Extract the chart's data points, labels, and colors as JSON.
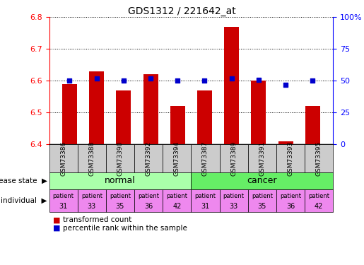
{
  "title": "GDS1312 / 221642_at",
  "samples": [
    "GSM73386",
    "GSM73388",
    "GSM73390",
    "GSM73392",
    "GSM73394",
    "GSM73387",
    "GSM73389",
    "GSM73391",
    "GSM73393",
    "GSM73395"
  ],
  "transformed_counts": [
    6.59,
    6.63,
    6.57,
    6.62,
    6.52,
    6.57,
    6.77,
    6.6,
    6.41,
    6.52
  ],
  "percentile_ranks": [
    50,
    52,
    50,
    52,
    50,
    50,
    52,
    51,
    47,
    50
  ],
  "ylim_left": [
    6.4,
    6.8
  ],
  "ylim_right": [
    0,
    100
  ],
  "yticks_left": [
    6.4,
    6.5,
    6.6,
    6.7,
    6.8
  ],
  "yticks_right": [
    0,
    25,
    50,
    75,
    100
  ],
  "ytick_labels_right": [
    "0",
    "25",
    "50",
    "75",
    "100%"
  ],
  "bar_color": "#cc0000",
  "scatter_color": "#0000cc",
  "normal_bg": "#aaffaa",
  "cancer_bg": "#66ee66",
  "individual_bg": "#ee88ee",
  "gsm_bg": "#cccccc",
  "bar_bottom": 6.4,
  "legend_items": [
    "transformed count",
    "percentile rank within the sample"
  ],
  "legend_colors": [
    "#cc0000",
    "#0000cc"
  ],
  "individuals_normal": [
    "patient\n31",
    "patient\n33",
    "patient\n35",
    "patient\n36",
    "patient\n42"
  ],
  "individuals_cancer": [
    "patient\n31",
    "patient\n33",
    "patient\n35",
    "patient\n36",
    "patient\n42"
  ]
}
